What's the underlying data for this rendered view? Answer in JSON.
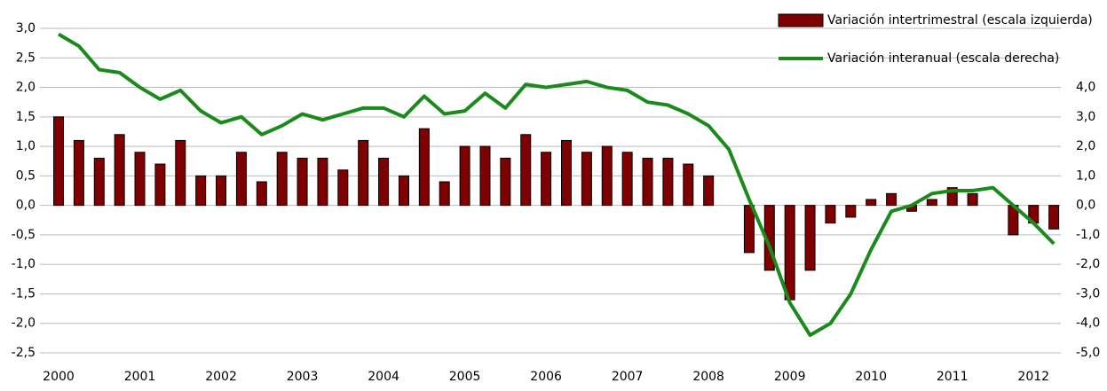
{
  "chart_data": {
    "type": "bar",
    "categories": [
      "2000",
      null,
      null,
      null,
      "2001",
      null,
      null,
      null,
      "2002",
      null,
      null,
      null,
      "2003",
      null,
      null,
      null,
      "2004",
      null,
      null,
      null,
      "2005",
      null,
      null,
      null,
      "2006",
      null,
      null,
      null,
      "2007",
      null,
      null,
      null,
      "2008",
      null,
      null,
      null,
      "2009",
      null,
      null,
      null,
      "2010",
      null,
      null,
      null,
      "2011",
      null,
      null,
      null,
      "2012",
      null
    ],
    "series": [
      {
        "name": "Variación intertrimestral (escala izquierda)",
        "type": "bar",
        "color": "#7f0000",
        "values": [
          1.5,
          1.1,
          0.8,
          1.2,
          0.9,
          0.7,
          1.1,
          0.5,
          0.5,
          0.9,
          0.4,
          0.9,
          0.8,
          0.8,
          0.6,
          1.1,
          0.8,
          0.5,
          1.3,
          0.4,
          1.0,
          1.0,
          0.8,
          1.2,
          0.9,
          1.1,
          0.9,
          1.0,
          0.9,
          0.8,
          0.8,
          0.7,
          0.5,
          0.0,
          -0.8,
          -1.1,
          -1.6,
          -1.1,
          -0.3,
          -0.2,
          0.1,
          0.2,
          -0.1,
          0.1,
          0.3,
          0.2,
          0.0,
          -0.5,
          -0.3,
          -0.4
        ]
      },
      {
        "name": "Variación interanual (escala derecha)",
        "type": "line",
        "axis": "y2",
        "color": "#1a8a1a",
        "values": [
          5.8,
          5.4,
          4.6,
          4.5,
          4.0,
          3.6,
          3.9,
          3.2,
          2.8,
          3.0,
          2.4,
          2.7,
          3.1,
          2.9,
          3.1,
          3.3,
          3.3,
          3.0,
          3.7,
          3.1,
          3.2,
          3.8,
          3.3,
          4.1,
          4.0,
          4.1,
          4.2,
          4.0,
          3.9,
          3.5,
          3.4,
          3.1,
          2.7,
          1.9,
          0.2,
          -1.4,
          -3.3,
          -4.4,
          -4.0,
          -3.0,
          -1.5,
          -0.2,
          0.0,
          0.4,
          0.5,
          0.5,
          0.6,
          0.0,
          -0.6,
          -1.3
        ]
      }
    ],
    "ylim": [
      -2.5,
      3.0
    ],
    "yticks": [
      {
        "value": 3.0,
        "label": "3,0"
      },
      {
        "value": 2.5,
        "label": "2,5"
      },
      {
        "value": 2.0,
        "label": "2,0"
      },
      {
        "value": 1.5,
        "label": "1,5"
      },
      {
        "value": 1.0,
        "label": "1,0"
      },
      {
        "value": 0.5,
        "label": "0,5"
      },
      {
        "value": 0.0,
        "label": "0,0"
      },
      {
        "value": -0.5,
        "label": "-0,5"
      },
      {
        "value": -1.0,
        "label": "-1,0"
      },
      {
        "value": -1.5,
        "label": "-1,5"
      },
      {
        "value": -2.0,
        "label": "-2,0"
      },
      {
        "value": -2.5,
        "label": "-2,5"
      }
    ],
    "y2lim": [
      -5.0,
      6.0
    ],
    "y2ticks": [
      {
        "value": 4.0,
        "label": "4,0"
      },
      {
        "value": 3.0,
        "label": "3,0"
      },
      {
        "value": 2.0,
        "label": "2,0"
      },
      {
        "value": 1.0,
        "label": "1,0"
      },
      {
        "value": 0.0,
        "label": "0,0"
      },
      {
        "value": -1.0,
        "label": "-1,0"
      },
      {
        "value": -2.0,
        "label": "-2,0"
      },
      {
        "value": -3.0,
        "label": "-3,0"
      },
      {
        "value": -4.0,
        "label": "-4,0"
      },
      {
        "value": -5.0,
        "label": "-5,0"
      }
    ],
    "grid": true,
    "legend": "top-right"
  }
}
